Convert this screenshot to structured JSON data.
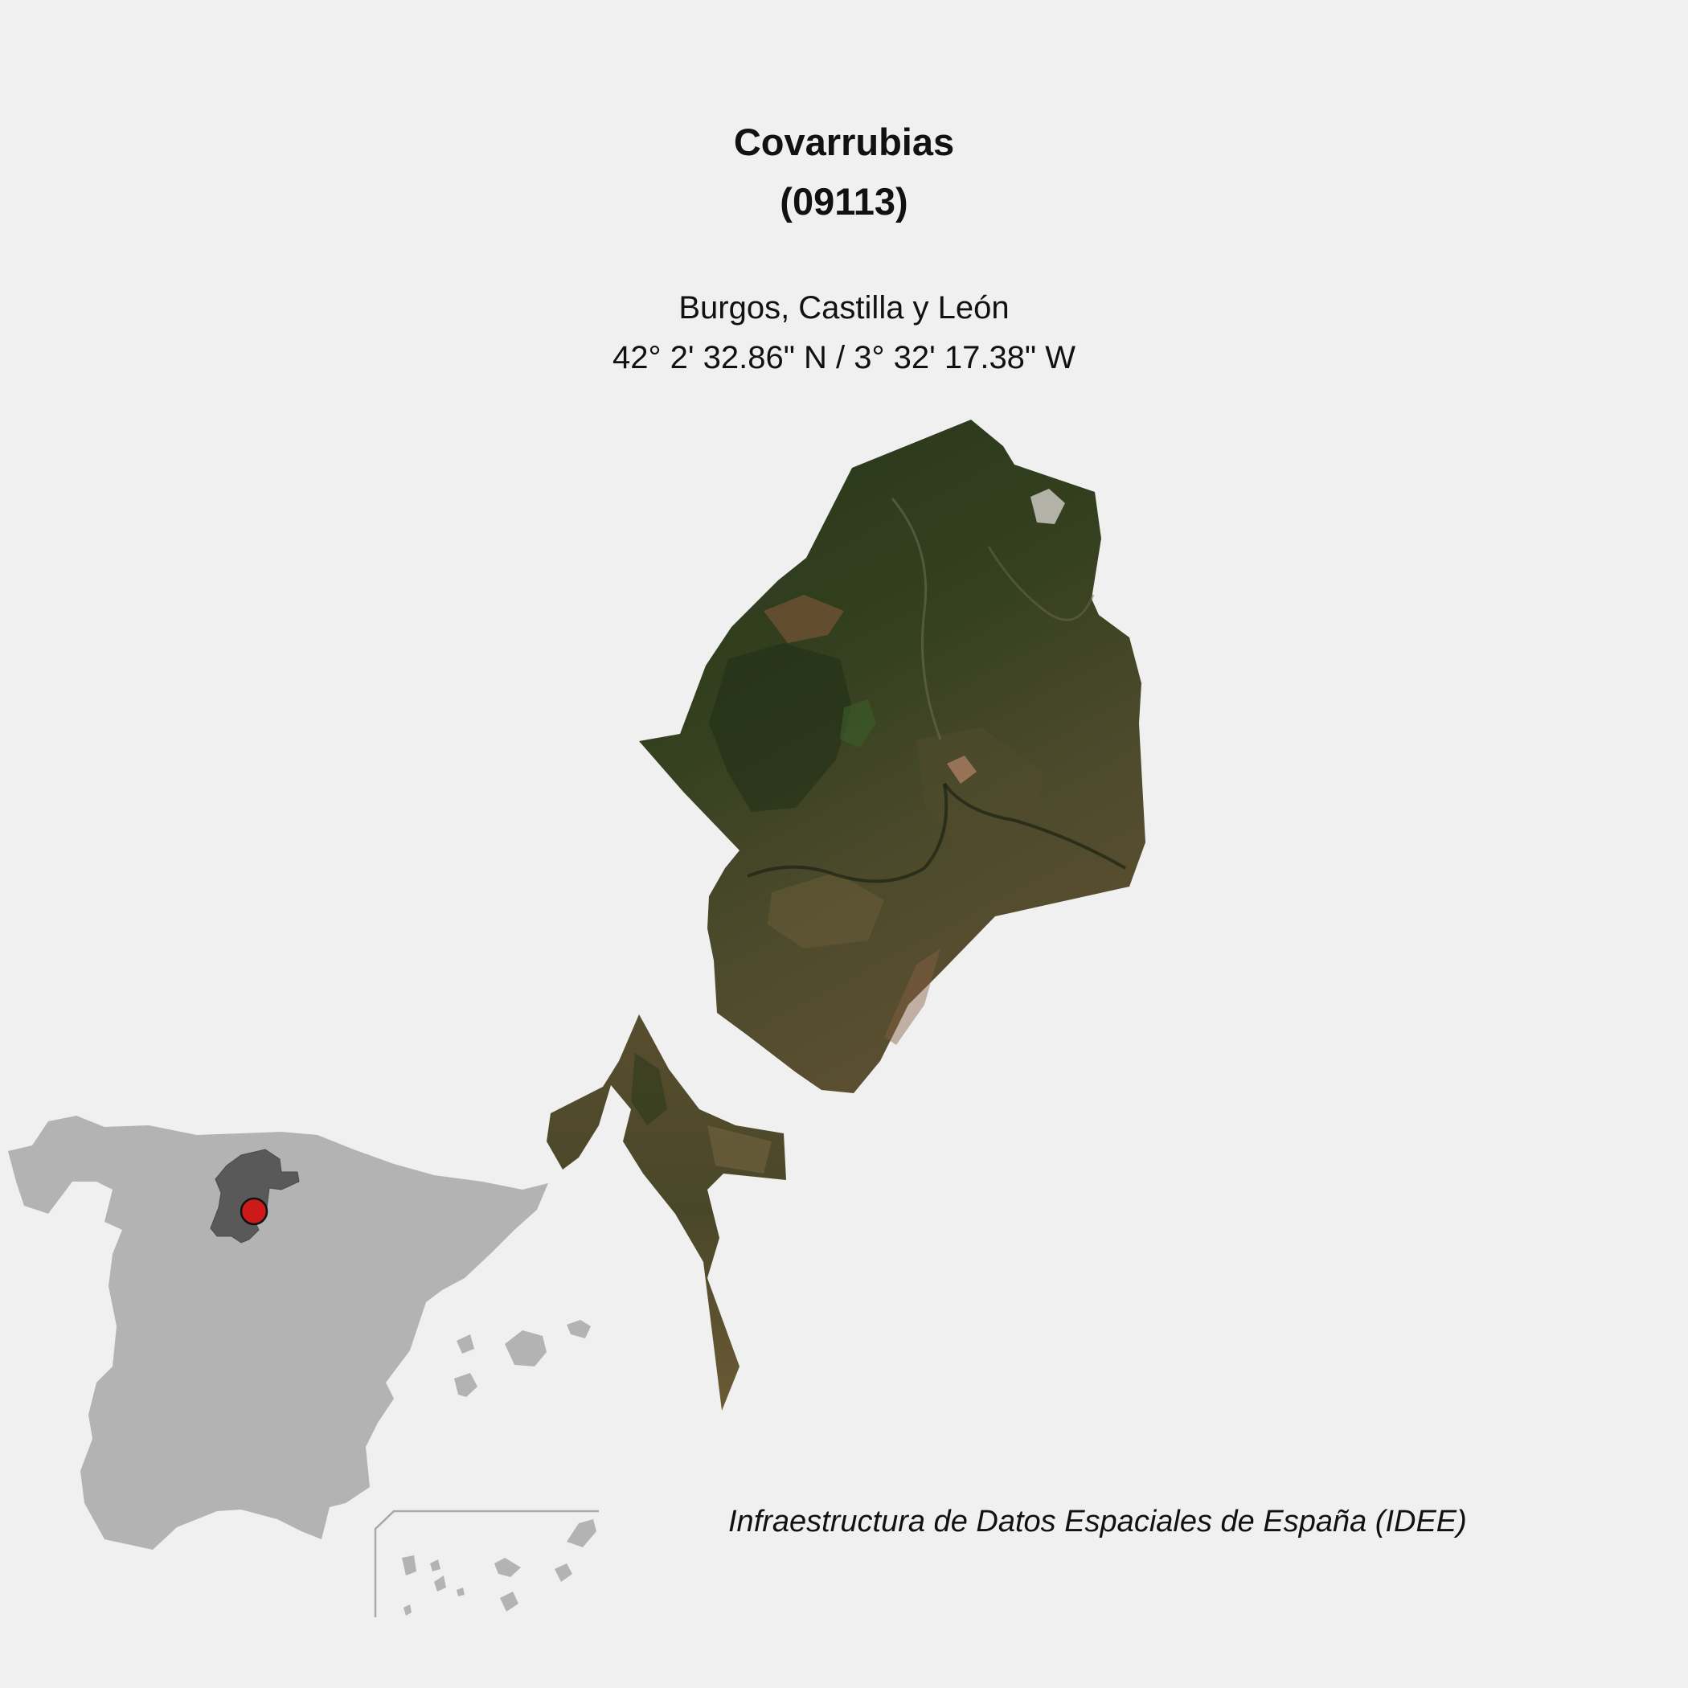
{
  "header": {
    "municipality": "Covarrubias",
    "code": "(09113)",
    "region": "Burgos, Castilla y León",
    "coordinates": "42° 2' 32.86\" N / 3° 32' 17.38\" W"
  },
  "footer": {
    "credit": "Infraestructura de Datos Espaciales de España (IDEE)"
  },
  "colors": {
    "background": "#f0f0f0",
    "country": "#b3b3b3",
    "province": "#595959",
    "marker": "#cc1a1a",
    "terrain_dark": "#2c3a1e",
    "terrain_mid": "#3f4a2a",
    "terrain_light": "#5e5634"
  },
  "icons": {
    "marker": "location-marker-icon"
  }
}
